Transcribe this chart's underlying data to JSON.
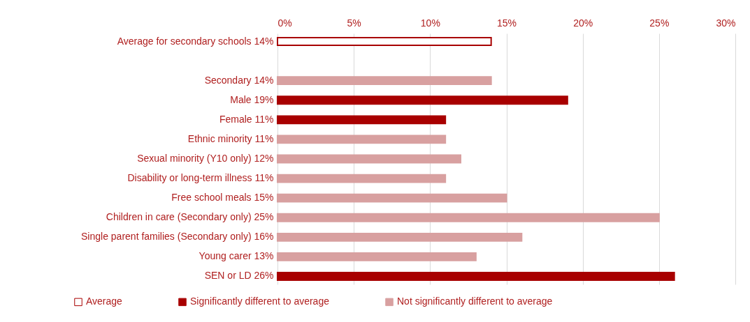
{
  "chart_data": {
    "type": "bar",
    "orientation": "horizontal",
    "categories": [
      "Average for secondary schools 14%",
      null,
      "Secondary 14%",
      "Male 19%",
      "Female 11%",
      "Ethnic minority 11%",
      "Sexual minority (Y10 only) 12%",
      "Disability or long-term illness 11%",
      "Free school meals 15%",
      "Children in care (Secondary only) 25%",
      "Single parent families (Secondary only) 16%",
      "Young carer 13%",
      "SEN or LD 26%"
    ],
    "series": [
      {
        "name": "Average",
        "color": "#ffffff",
        "values": [
          14,
          null,
          null,
          null,
          null,
          null,
          null,
          null,
          null,
          null,
          null,
          null,
          null
        ]
      },
      {
        "name": "Significantly different to average",
        "color": "#a80000",
        "values": [
          null,
          null,
          null,
          19,
          11,
          null,
          null,
          null,
          null,
          null,
          null,
          null,
          26
        ]
      },
      {
        "name": "Not significantly different to average",
        "color": "#d8a0a0",
        "values": [
          null,
          null,
          14,
          null,
          null,
          11,
          12,
          11,
          15,
          25,
          16,
          13,
          null
        ]
      }
    ],
    "xlim": [
      0,
      30
    ],
    "xticks": [
      {
        "value": 0,
        "label": "0%"
      },
      {
        "value": 5,
        "label": "5%"
      },
      {
        "value": 10,
        "label": "10%"
      },
      {
        "value": 15,
        "label": "15%"
      },
      {
        "value": 20,
        "label": "20%"
      },
      {
        "value": 25,
        "label": "25%"
      },
      {
        "value": 30,
        "label": "30%"
      }
    ],
    "grid": "x",
    "legend": "bottom"
  }
}
